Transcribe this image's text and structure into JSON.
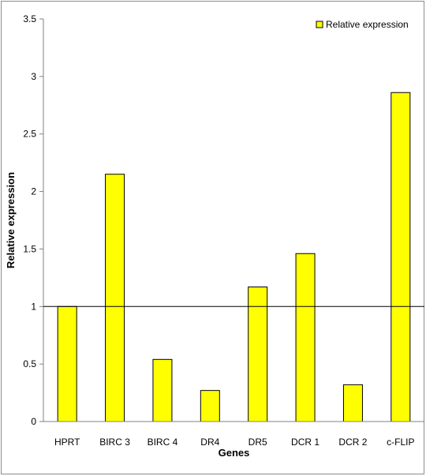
{
  "chart_data": {
    "type": "bar",
    "categories": [
      "HPRT",
      "BIRC 3",
      "BIRC 4",
      "DR4",
      "DR5",
      "DCR 1",
      "DCR 2",
      "c-FLIP"
    ],
    "series": [
      {
        "name": "Relative expression",
        "values": [
          1.0,
          2.15,
          0.54,
          0.27,
          1.17,
          1.46,
          0.32,
          2.86
        ]
      }
    ],
    "xlabel": "Genes",
    "ylabel": "Relative expression",
    "ylim": [
      0,
      3.5
    ],
    "yticks": [
      "0",
      "0.5",
      "1",
      "1.5",
      "2",
      "2.5",
      "3",
      "3.5"
    ],
    "reference_line": 1,
    "grid": false,
    "legend_position": "top-right",
    "colors": {
      "bar_fill": "#ffff00",
      "bar_stroke": "#000000",
      "axis": "#808080"
    }
  }
}
